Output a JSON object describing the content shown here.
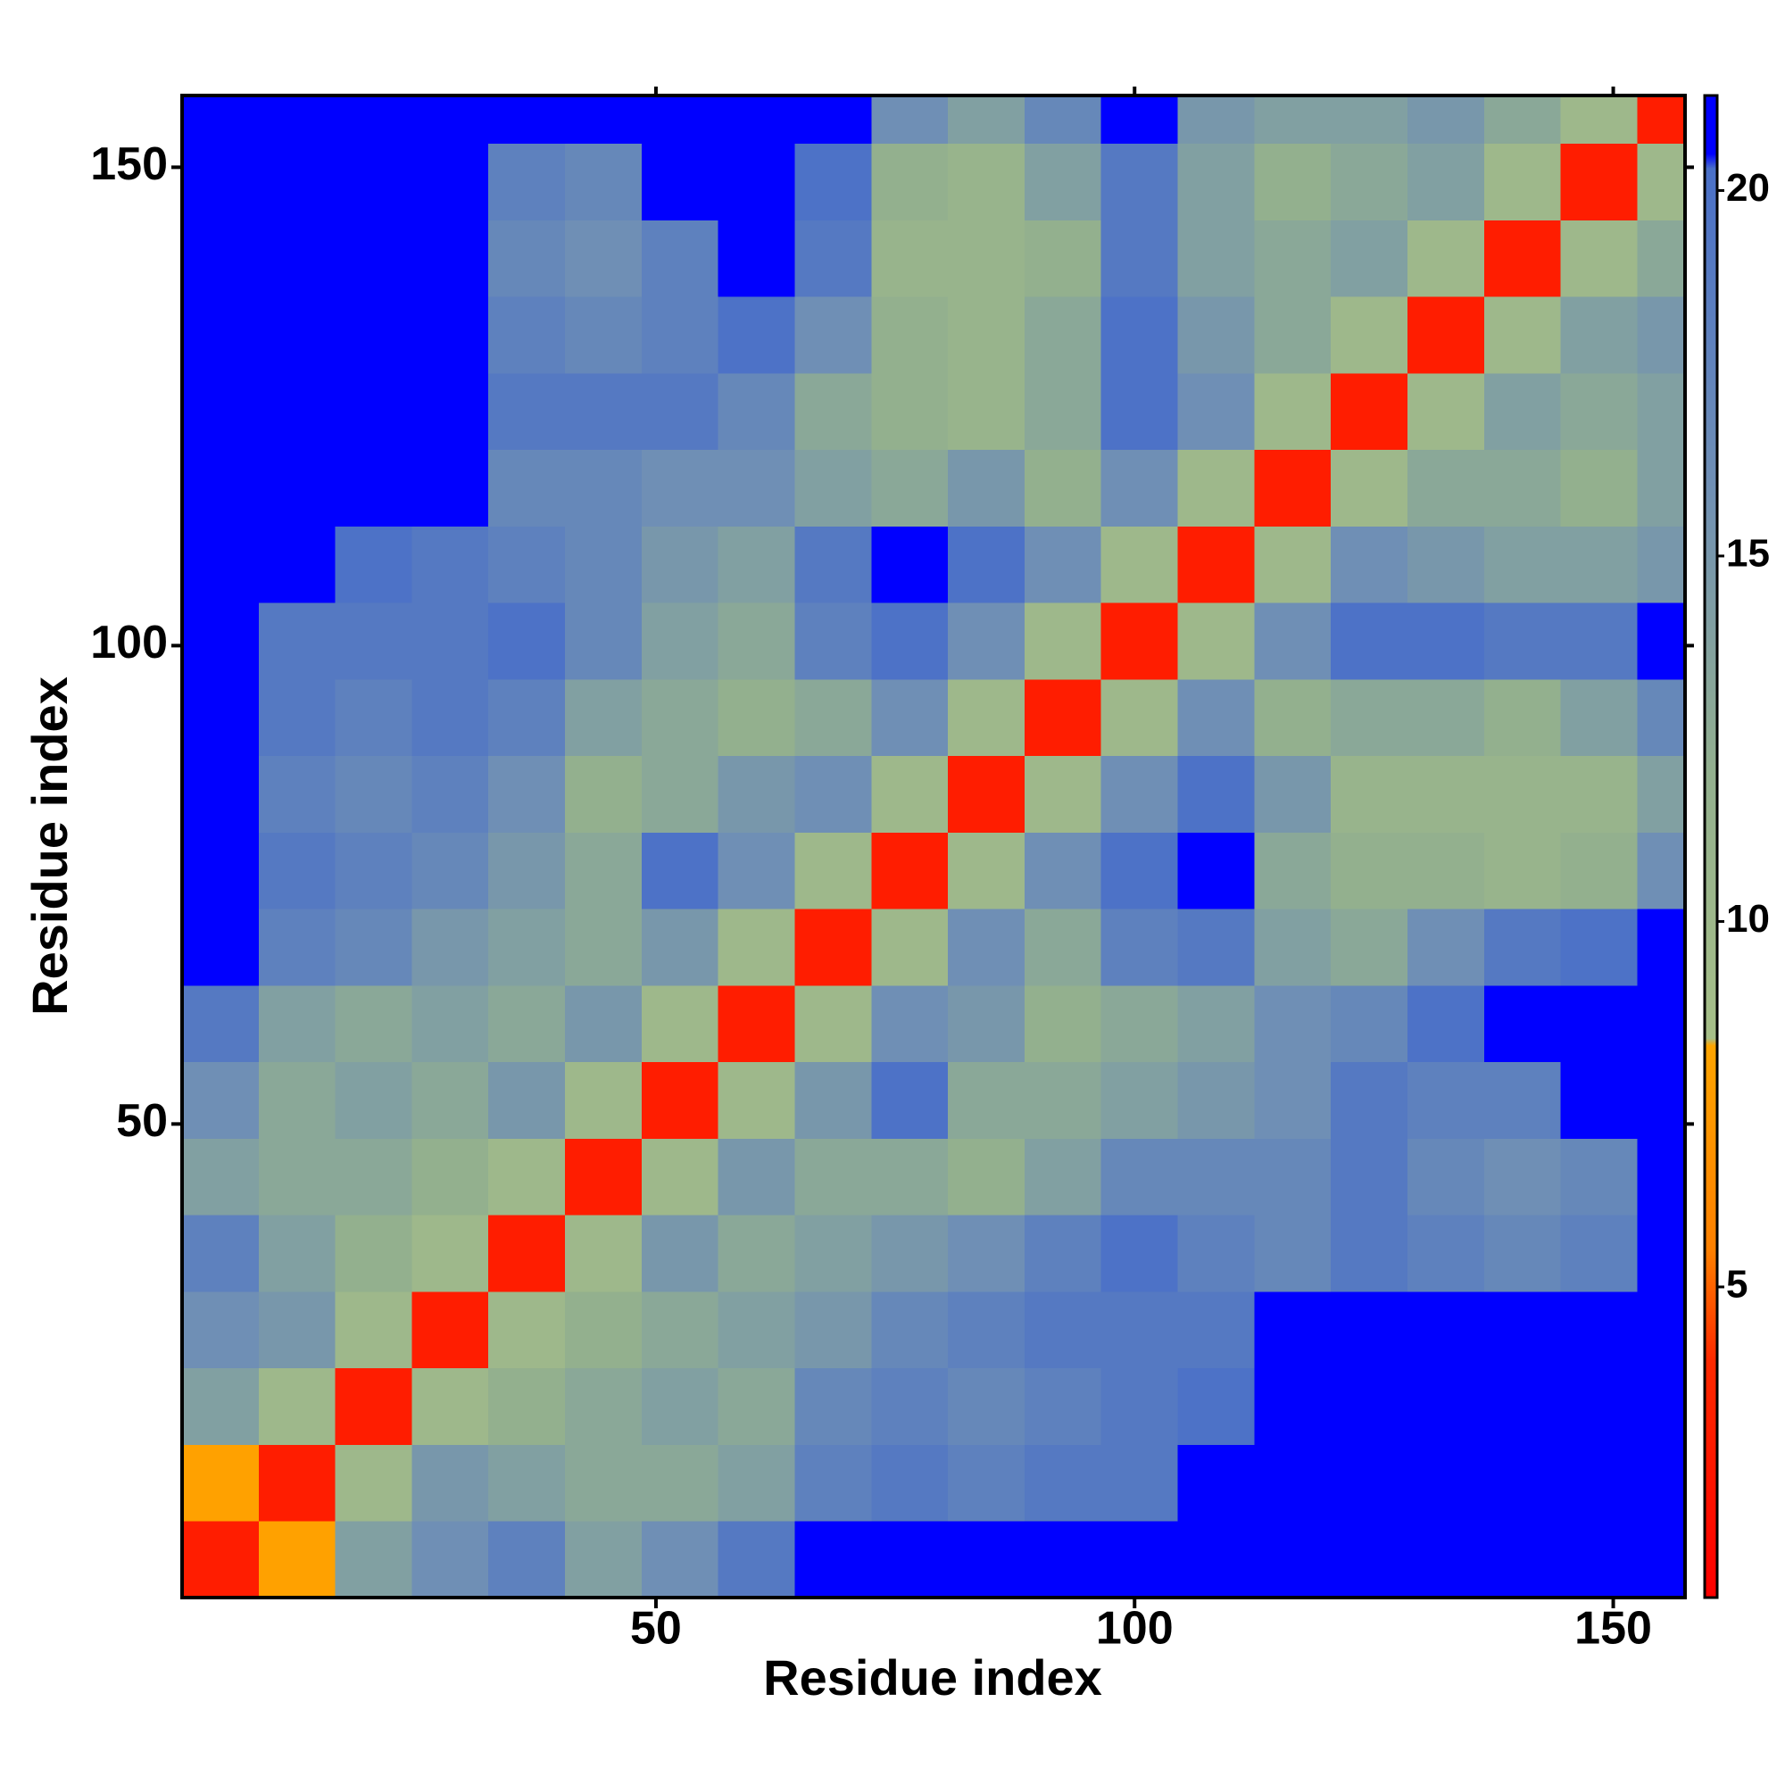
{
  "chart_data": {
    "type": "heatmap",
    "xlabel": "Residue index",
    "ylabel": "Residue index",
    "xlim": [
      0.5,
      157.5
    ],
    "ylim": [
      0.5,
      157.5
    ],
    "xticks": [
      50,
      100,
      150
    ],
    "yticks": [
      50,
      100,
      150
    ],
    "xbins": [
      0.5,
      8.5,
      16.5,
      24.5,
      32.5,
      40.5,
      48.5,
      56.5,
      64.5,
      72.5,
      80.5,
      88.5,
      96.5,
      104.5,
      112.5,
      120.5,
      128.5,
      136.5,
      144.5,
      152.5,
      157.5
    ],
    "ybins": [
      0.5,
      8.5,
      16.5,
      24.5,
      32.5,
      40.5,
      48.5,
      56.5,
      64.5,
      72.5,
      80.5,
      88.5,
      96.5,
      104.5,
      112.5,
      120.5,
      128.5,
      136.5,
      144.5,
      152.5,
      157.5
    ],
    "z": [
      [
        3,
        8,
        14,
        16,
        18,
        14,
        16,
        19,
        21,
        21,
        21,
        21,
        21,
        21,
        21,
        21,
        21,
        21,
        21,
        21
      ],
      [
        8,
        3,
        10,
        15,
        14,
        13,
        13,
        14,
        18,
        19,
        18,
        19,
        19,
        21,
        21,
        21,
        21,
        21,
        21,
        21
      ],
      [
        14,
        10,
        3,
        10,
        12,
        13,
        14,
        13,
        17,
        18,
        17,
        18,
        19,
        20,
        21,
        21,
        21,
        21,
        21,
        21
      ],
      [
        16,
        15,
        10,
        3,
        10,
        12,
        13,
        14,
        15,
        17,
        18,
        19,
        19,
        19,
        21,
        21,
        21,
        21,
        21,
        21
      ],
      [
        18,
        14,
        12,
        10,
        3,
        10,
        15,
        13,
        14,
        15,
        16,
        18,
        20,
        18,
        17,
        19,
        18,
        17,
        18,
        21
      ],
      [
        14,
        13,
        13,
        12,
        10,
        3,
        10,
        15,
        13,
        13,
        12,
        14,
        17,
        17,
        17,
        19,
        17,
        16,
        17,
        21
      ],
      [
        16,
        13,
        14,
        13,
        15,
        10,
        3,
        10,
        15,
        20,
        13,
        13,
        14,
        15,
        16,
        19,
        18,
        18,
        21,
        21
      ],
      [
        19,
        14,
        13,
        14,
        13,
        15,
        10,
        3,
        10,
        16,
        15,
        12,
        13,
        14,
        16,
        17,
        20,
        21,
        21,
        21
      ],
      [
        21,
        18,
        17,
        15,
        14,
        13,
        15,
        10,
        3,
        10,
        16,
        13,
        18,
        19,
        14,
        13,
        16,
        19,
        20,
        21
      ],
      [
        21,
        19,
        18,
        17,
        15,
        13,
        20,
        16,
        10,
        3,
        10,
        16,
        20,
        21,
        13,
        12,
        12,
        11,
        12,
        16
      ],
      [
        21,
        18,
        17,
        18,
        16,
        12,
        13,
        15,
        16,
        10,
        3,
        10,
        16,
        20,
        15,
        11,
        11,
        11,
        11,
        14
      ],
      [
        21,
        19,
        18,
        19,
        18,
        14,
        13,
        12,
        13,
        16,
        10,
        3,
        10,
        16,
        12,
        13,
        13,
        12,
        14,
        17
      ],
      [
        21,
        19,
        19,
        19,
        20,
        17,
        14,
        13,
        18,
        20,
        16,
        10,
        3,
        10,
        16,
        20,
        20,
        19,
        19,
        21
      ],
      [
        21,
        21,
        20,
        19,
        18,
        17,
        15,
        14,
        19,
        21,
        20,
        16,
        10,
        3,
        10,
        16,
        15,
        14,
        14,
        15
      ],
      [
        21,
        21,
        21,
        21,
        17,
        17,
        16,
        16,
        14,
        13,
        15,
        12,
        16,
        10,
        3,
        10,
        13,
        13,
        12,
        14
      ],
      [
        21,
        21,
        21,
        21,
        19,
        19,
        19,
        17,
        13,
        12,
        11,
        13,
        20,
        16,
        10,
        3,
        10,
        14,
        13,
        14
      ],
      [
        21,
        21,
        21,
        21,
        18,
        17,
        18,
        20,
        16,
        12,
        11,
        13,
        20,
        15,
        13,
        10,
        3,
        10,
        14,
        15
      ],
      [
        21,
        21,
        21,
        21,
        17,
        16,
        18,
        21,
        19,
        11,
        11,
        12,
        19,
        14,
        13,
        14,
        10,
        3,
        10,
        13
      ],
      [
        21,
        21,
        21,
        21,
        18,
        17,
        21,
        21,
        20,
        12,
        11,
        14,
        19,
        14,
        12,
        13,
        14,
        10,
        3,
        10
      ],
      [
        21,
        21,
        21,
        21,
        21,
        21,
        21,
        21,
        21,
        16,
        14,
        17,
        21,
        15,
        14,
        14,
        15,
        13,
        10,
        3
      ]
    ],
    "colorbar": {
      "lim": [
        0.75,
        21.3
      ],
      "ticks": [
        5,
        10,
        15,
        20
      ]
    },
    "colorscale": [
      {
        "value": 0.75,
        "color": "#ff0000"
      },
      {
        "value": 4,
        "color": "#ff2a00"
      },
      {
        "value": 5.5,
        "color": "#ff8000"
      },
      {
        "value": 8.3,
        "color": "#ffa500"
      },
      {
        "value": 8.4,
        "color": "#a6bf88"
      },
      {
        "value": 12,
        "color": "#93b08e"
      },
      {
        "value": 16,
        "color": "#6f8fb5"
      },
      {
        "value": 20.3,
        "color": "#4a70c8"
      },
      {
        "value": 20.5,
        "color": "#0000ff"
      },
      {
        "value": 21.3,
        "color": "#0000ff"
      }
    ]
  }
}
